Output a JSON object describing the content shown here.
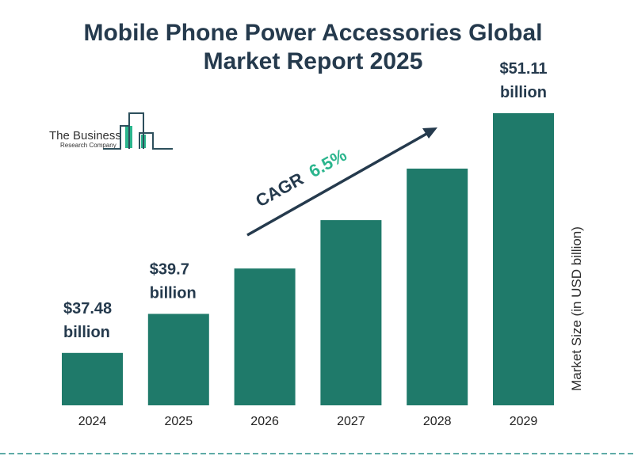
{
  "title_line1": "Mobile Phone Power Accessories Global",
  "title_line2": "Market Report 2025",
  "logo": {
    "line1": "The Business",
    "line2": "Research Company"
  },
  "cagr": {
    "label": "CAGR",
    "value": "6.5%"
  },
  "colors": {
    "bar": "#1f7a6a",
    "title": "#253a4d",
    "accent": "#2bb58d",
    "dash": "#2a8f8a"
  },
  "chart_data": {
    "type": "bar",
    "title": "Mobile Phone Power Accessories Global Market Report 2025",
    "categories": [
      "2024",
      "2025",
      "2026",
      "2027",
      "2028",
      "2029"
    ],
    "values": [
      37.48,
      39.7,
      42.28,
      45.03,
      47.96,
      51.11
    ],
    "data_labels": [
      {
        "index": 0,
        "line1": "$37.48",
        "line2": "billion"
      },
      {
        "index": 1,
        "line1": "$39.7",
        "line2": "billion"
      },
      {
        "index": 5,
        "line1": "$51.11",
        "line2": "billion"
      }
    ],
    "xlabel": "",
    "ylabel": "Market Size (in USD billion)",
    "grid": false
  }
}
